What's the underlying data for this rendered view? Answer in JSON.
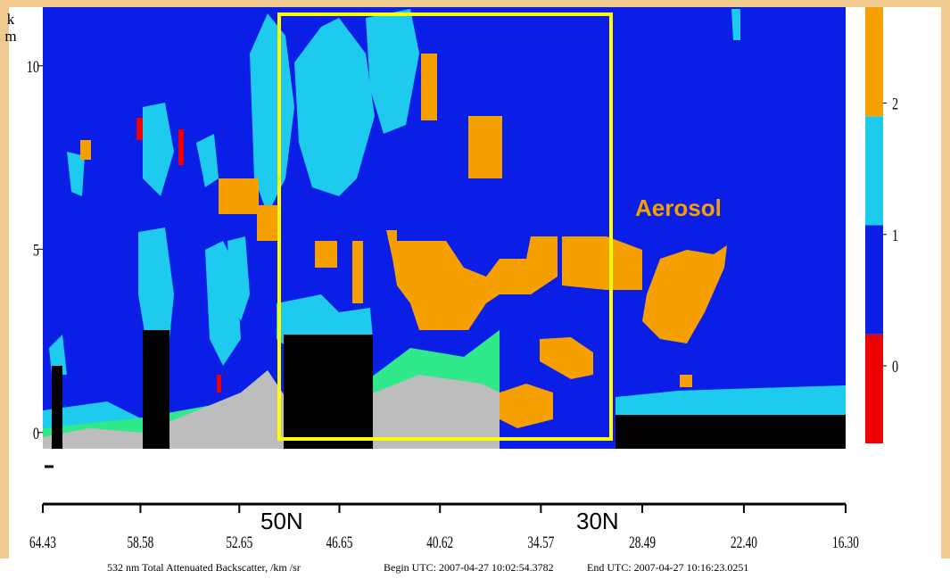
{
  "chart_data": {
    "type": "curtain",
    "ylabel": "km",
    "ylim": [
      -2,
      11.6
    ],
    "yticks": [
      0,
      5,
      10
    ],
    "xlim": [
      64.43,
      16.3
    ],
    "xticks": [
      64.43,
      58.58,
      52.65,
      46.65,
      40.62,
      34.57,
      {
        "value": 28.49,
        "label": "28.49"
      },
      {
        "value": 22.4,
        "label": "22.40"
      },
      {
        "value": 16.3,
        "label": "16.30"
      }
    ],
    "colorbar": {
      "lim": [
        -0.59,
        2.73
      ],
      "ticks": [
        0,
        1,
        2
      ],
      "colors": [
        "#ee0000",
        "#0a1ee6",
        "#1ecbef",
        "#f5a000"
      ]
    },
    "annotations": [
      "Aerosol",
      "50N",
      "30N"
    ],
    "caption": [
      "532 nm Total Attenuated Backscatter, /km /sr",
      "Begin UTC: 2007-04-27 10:02:54.3782",
      "End UTC: 2007-04-27 10:16:23.0251"
    ]
  }
}
